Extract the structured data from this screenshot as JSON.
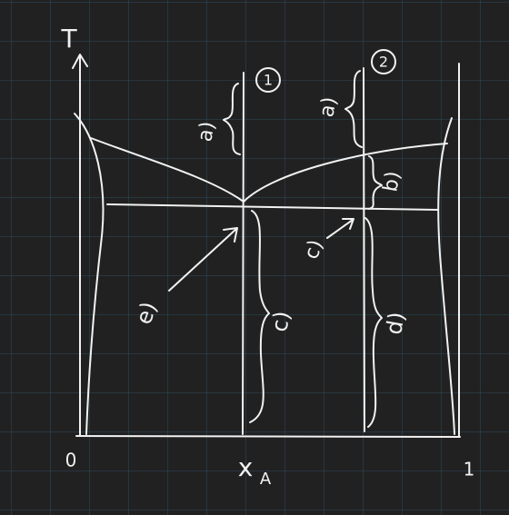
{
  "axes": {
    "y_label": "T",
    "x_label": {
      "main": "x",
      "sub": "A"
    },
    "x_start": "0",
    "x_end": "1"
  },
  "markers": [
    "1",
    "2"
  ],
  "regions": {
    "a_left": "a)",
    "a_right": "a)",
    "b": "b)",
    "c_arrow": "c)",
    "c_brace": "c)",
    "d": "d)",
    "e": "e)"
  }
}
